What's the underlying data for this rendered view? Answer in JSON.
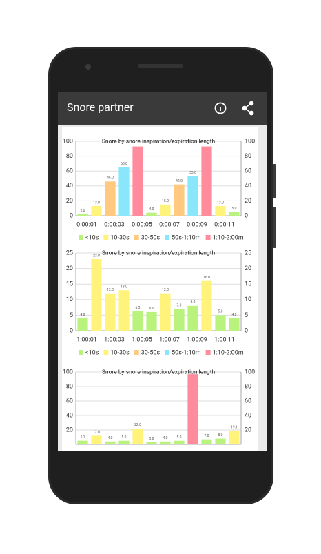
{
  "app_bar": {
    "title": "Snore partner"
  },
  "charts": [
    {
      "type": "bar",
      "title": "Snore by snore inspiration/expiration length",
      "categories": [
        "0:00:01",
        null,
        "0:00:03",
        null,
        "0:00:05",
        null,
        "0:00:07",
        null,
        "0:00:09",
        null,
        "0:00:11",
        null
      ],
      "values": [
        2,
        13,
        46,
        65,
        93,
        4,
        15,
        42,
        53,
        93,
        13,
        5
      ],
      "value_labels": [
        "2.0",
        "13.0",
        "46.0",
        "65.0",
        null,
        "4.0",
        "15.0",
        "42.0",
        "53.0",
        null,
        "13.0",
        "5.0"
      ],
      "colors": [
        "#b9f27c",
        "#fff37c",
        "#ffc980",
        "#8ae6fb",
        "#ff8b9c",
        "#b9f27c",
        "#fff37c",
        "#ffc980",
        "#8ae6fb",
        "#ff8b9c",
        "#fff37c",
        "#b9f27c"
      ],
      "ylim": [
        0,
        100
      ],
      "yticks": [
        0,
        20,
        40,
        60,
        80,
        100
      ],
      "grid": true,
      "legend": [
        {
          "name": "<10s",
          "color": "#b9f27c"
        },
        {
          "name": "10-30s",
          "color": "#fff37c"
        },
        {
          "name": "30-50s",
          "color": "#ffc980"
        },
        {
          "name": "50s-1:10m",
          "color": "#8ae6fb"
        },
        {
          "name": "1:10-2:00m",
          "color": "#ff8b9c"
        }
      ]
    },
    {
      "type": "bar",
      "title": "Snore by snore inspiration/expiration length",
      "categories": [
        "1:00:01",
        null,
        "1:00:03",
        null,
        "1:00:05",
        null,
        "1:00:07",
        null,
        "1:00:09",
        null,
        "1:00:11",
        null
      ],
      "values": [
        4,
        23,
        12,
        13,
        6.3,
        6,
        12,
        7,
        8,
        16,
        5,
        4
      ],
      "value_labels": [
        "4.0",
        "23.0",
        "12.0",
        "13.0",
        "6.3",
        "6.0",
        "12.0",
        "7.0",
        "8.0",
        "16.0",
        "5.0",
        "4.0"
      ],
      "colors": [
        "#b9f27c",
        "#fff37c",
        "#fff37c",
        "#fff37c",
        "#b9f27c",
        "#b9f27c",
        "#fff37c",
        "#b9f27c",
        "#b9f27c",
        "#fff37c",
        "#b9f27c",
        "#b9f27c"
      ],
      "ylim": [
        0,
        25
      ],
      "yticks": [
        0,
        5,
        10,
        15,
        20,
        25
      ],
      "grid": true,
      "legend": [
        {
          "name": "<10s",
          "color": "#b9f27c"
        },
        {
          "name": "10-30s",
          "color": "#fff37c"
        },
        {
          "name": "30-50s",
          "color": "#ffc980"
        },
        {
          "name": "50s-1:10m",
          "color": "#8ae6fb"
        },
        {
          "name": "1:10-2:00m",
          "color": "#ff8b9c"
        }
      ]
    },
    {
      "type": "bar",
      "title": "Snore by snore inspiration/expiration length",
      "values": [
        5.1,
        12,
        4,
        5,
        22,
        3,
        4,
        5,
        97,
        7,
        8,
        19.1
      ],
      "value_labels": [
        "5.1",
        "12.0",
        "4.0",
        "5.0",
        "22.0",
        "3.0",
        "4.0",
        "5.0",
        null,
        "7.0",
        "8.0",
        "19.1"
      ],
      "colors": [
        "#b9f27c",
        "#fff37c",
        "#b9f27c",
        "#b9f27c",
        "#fff37c",
        "#b9f27c",
        "#b9f27c",
        "#b9f27c",
        "#ff8b9c",
        "#b9f27c",
        "#b9f27c",
        "#fff37c"
      ],
      "ylim": [
        0,
        100
      ],
      "yticks": [
        20,
        40,
        60,
        80,
        100
      ],
      "grid": true
    }
  ]
}
